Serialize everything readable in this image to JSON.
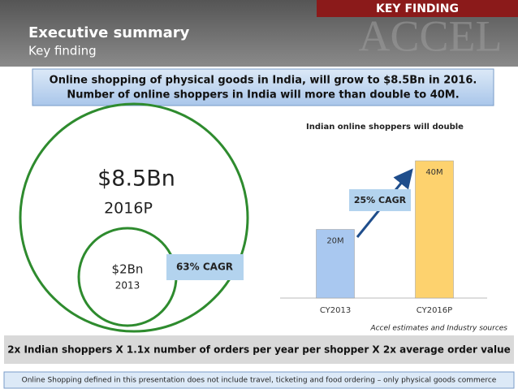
{
  "header": {
    "tag": "KEY FINDING",
    "title": "Executive summary",
    "subtitle": "Key finding",
    "watermark": "ACCEL"
  },
  "headline": [
    "Online shopping of physical goods in India, will grow to $8.5Bn in 2016.",
    "Number of online shoppers in India will more than double to 40M."
  ],
  "circles": {
    "large": {
      "value": "$8.5Bn",
      "year": "2016P"
    },
    "small": {
      "value": "$2Bn",
      "year": "2013"
    },
    "cagr": "63% CAGR"
  },
  "chart_data": {
    "type": "bar",
    "title": "Indian online shoppers will double",
    "categories": [
      "CY2013",
      "CY2016P"
    ],
    "values": [
      20,
      40
    ],
    "value_labels": [
      "20M",
      "40M"
    ],
    "colors": [
      "#a9c8f0",
      "#fdd26e"
    ],
    "annotation": "25% CAGR",
    "source": "Accel estimates and Industry sources"
  },
  "formula": "2x Indian shoppers X 1.1x number of orders per year per shopper X 2x average order value",
  "footnote": "Online Shopping defined in this presentation does not include travel, ticketing and food ordering – only physical goods commerce"
}
